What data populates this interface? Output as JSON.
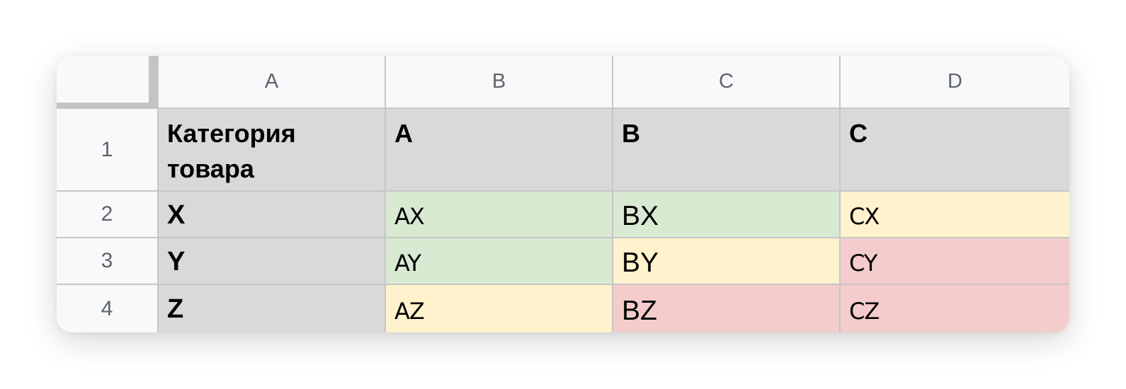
{
  "column_headers": [
    "A",
    "B",
    "C",
    "D"
  ],
  "row_headers": [
    "1",
    "2",
    "3",
    "4"
  ],
  "colors": {
    "header_bg": "#d9d9d9",
    "green": "#d9ead3",
    "yellow": "#fff2cc",
    "red": "#f4cccc",
    "grid_header_bg": "#f8f9fa"
  },
  "rows": [
    {
      "cells": [
        "Категория товара",
        "A",
        "B",
        "C"
      ]
    },
    {
      "cells": [
        "X",
        "AX",
        "BX",
        "CX"
      ],
      "fills": [
        "header_bg",
        "green",
        "green",
        "yellow"
      ]
    },
    {
      "cells": [
        "Y",
        "AY",
        "BY",
        "CY"
      ],
      "fills": [
        "header_bg",
        "green",
        "yellow",
        "red"
      ]
    },
    {
      "cells": [
        "Z",
        "AZ",
        "BZ",
        "CZ"
      ],
      "fills": [
        "header_bg",
        "yellow",
        "red",
        "red"
      ]
    }
  ]
}
